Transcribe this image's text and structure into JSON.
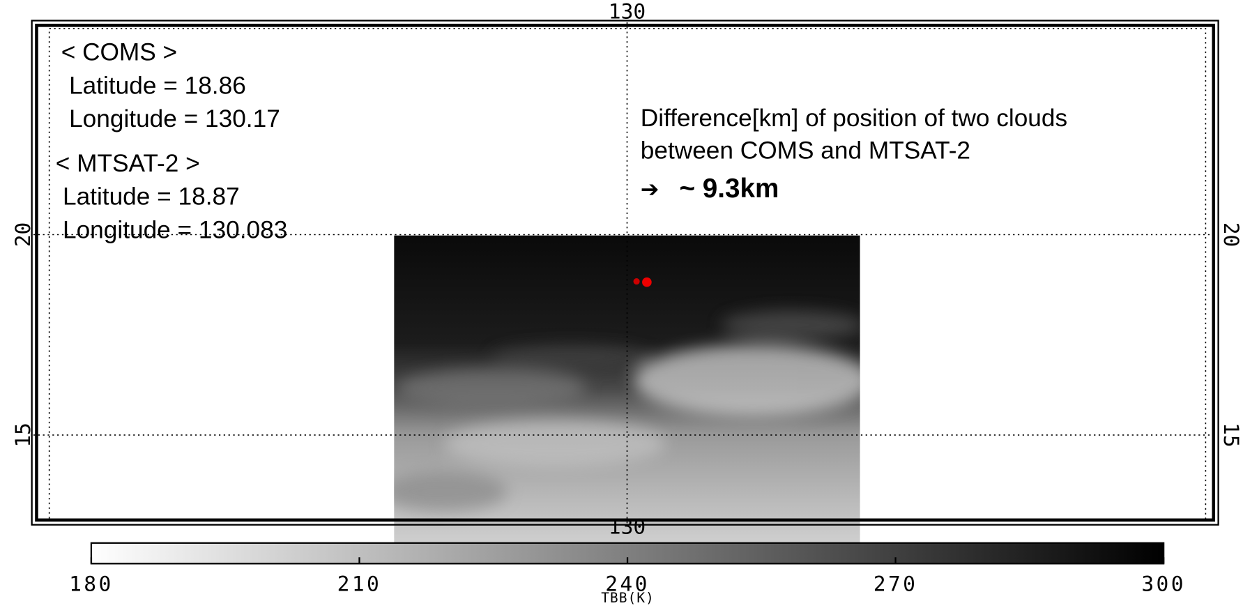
{
  "map": {
    "lon_range": [
      115.2,
      144.7
    ],
    "lat_range": [
      12.8,
      25.3
    ],
    "lon_ticks": [
      130
    ],
    "lat_ticks": [
      20,
      15
    ],
    "grid": true
  },
  "annotation": {
    "coms": {
      "title": "< COMS >",
      "latitude": "Latitude = 18.86",
      "longitude": "Longitude = 130.17"
    },
    "mtsat": {
      "title": "< MTSAT-2 >",
      "latitude": "Latitude = 18.87",
      "longitude": "Longitude = 130.083"
    },
    "difference": {
      "line1": "Difference[km] of position of two clouds",
      "line2": "between COMS and MTSAT-2",
      "arrow": "➔",
      "result": "~ 9.3km",
      "result_color": "#1a3fc4"
    }
  },
  "colorbar": {
    "label": "TBB(K)",
    "range": [
      180,
      300
    ],
    "ticks": [
      180,
      210,
      240,
      270,
      300
    ],
    "colors": [
      "#ffffff",
      "#000000"
    ]
  }
}
